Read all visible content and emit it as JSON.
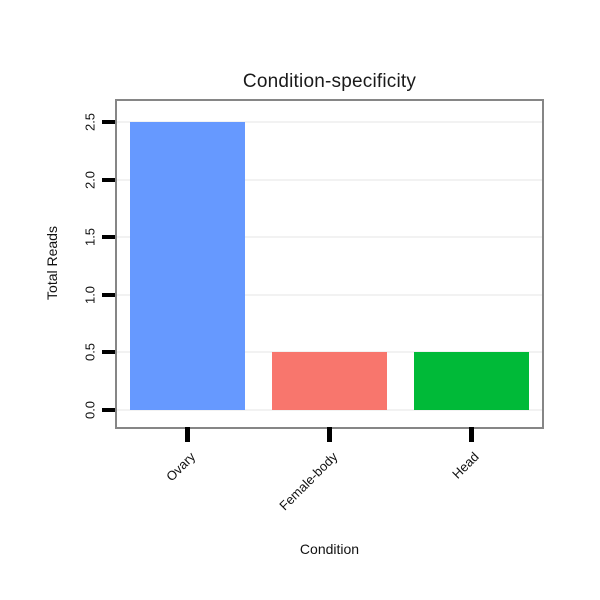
{
  "chart_data": {
    "type": "bar",
    "title": "Condition-specificity",
    "xlabel": "Condition",
    "ylabel": "Total Reads",
    "categories": [
      "Ovary",
      "Female-body",
      "Head"
    ],
    "values": [
      2.5,
      0.5,
      0.5
    ],
    "bar_colors": [
      "#6699FF",
      "#F8766D",
      "#00BA38"
    ],
    "yticks": [
      0,
      0.5,
      1,
      1.5,
      2,
      2.5
    ],
    "ytick_labels": [
      "0.0",
      "0.5",
      "1.0",
      "1.5",
      "2.0",
      "2.5"
    ],
    "ylim": [
      0,
      2.5
    ],
    "grid": "horizontal",
    "legend": "none"
  }
}
